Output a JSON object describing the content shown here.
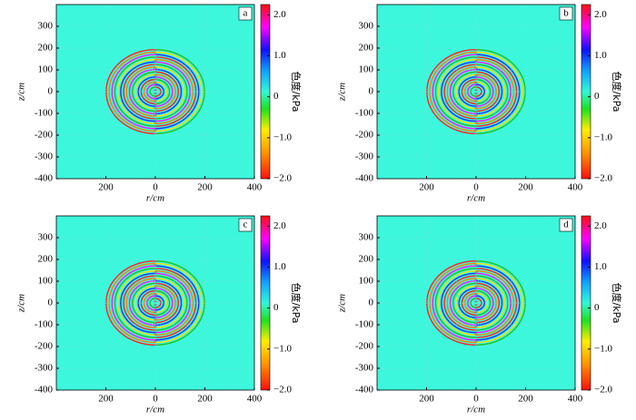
{
  "chart_data": [
    {
      "type": "heatmap",
      "panel_label": "a",
      "xlabel": "r/cm",
      "ylabel": "z/cm",
      "xlim": [
        -400,
        400
      ],
      "ylim": [
        -400,
        400
      ],
      "xticks": [
        {
          "value": -200,
          "label": "200"
        },
        0,
        200,
        400
      ],
      "yticks": [
        -400,
        -300,
        -200,
        -100,
        0,
        100,
        200,
        300
      ],
      "grid": true,
      "background": "#3cf7dc",
      "colorbar_label": "色度/kPa",
      "clim": [
        -2.0,
        2.25
      ],
      "cticks": [
        {
          "value": 2,
          "label": "2.0"
        },
        {
          "value": 1,
          "label": "1.0"
        },
        0,
        {
          "value": -1,
          "label": "−1.0"
        },
        {
          "value": -2,
          "label": "−2.0"
        }
      ]
    },
    {
      "type": "heatmap",
      "panel_label": "b",
      "xlabel": "r/cm",
      "ylabel": "z/cm",
      "xlim": [
        -400,
        400
      ],
      "ylim": [
        -400,
        400
      ],
      "xticks": [
        {
          "value": -200,
          "label": "200"
        },
        0,
        200,
        400
      ],
      "yticks": [
        -400,
        -300,
        -200,
        -100,
        0,
        100,
        200,
        300
      ],
      "grid": true,
      "background": "#3cf7dc",
      "colorbar_label": "色度/kPa",
      "clim": [
        -2.0,
        2.25
      ],
      "cticks": [
        {
          "value": 2,
          "label": "2.0"
        },
        {
          "value": 1,
          "label": "1.0"
        },
        0,
        {
          "value": -1,
          "label": "−1.0"
        },
        {
          "value": -2,
          "label": "−2.0"
        }
      ]
    },
    {
      "type": "heatmap",
      "panel_label": "c",
      "xlabel": "r/cm",
      "ylabel": "z/cm",
      "xlim": [
        -400,
        400
      ],
      "ylim": [
        -400,
        400
      ],
      "xticks": [
        {
          "value": -200,
          "label": "200"
        },
        0,
        200,
        400
      ],
      "yticks": [
        -400,
        -300,
        -200,
        -100,
        0,
        100,
        200,
        300
      ],
      "grid": true,
      "background": "#3cf7dc",
      "colorbar_label": "色度/kPa",
      "clim": [
        -2.0,
        2.25
      ],
      "cticks": [
        {
          "value": 2,
          "label": "2.0"
        },
        {
          "value": 1,
          "label": "1.0"
        },
        0,
        {
          "value": -1,
          "label": "−1.0"
        },
        {
          "value": -2,
          "label": "−2.0"
        }
      ]
    },
    {
      "type": "heatmap",
      "panel_label": "d",
      "xlabel": "r/cm",
      "ylabel": "z/cm",
      "xlim": [
        -400,
        400
      ],
      "ylim": [
        -400,
        400
      ],
      "xticks": [
        {
          "value": -200,
          "label": "200"
        },
        0,
        200,
        400
      ],
      "yticks": [
        -400,
        -300,
        -200,
        -100,
        0,
        100,
        200,
        300
      ],
      "grid": true,
      "background": "#3cf7dc",
      "colorbar_label": "色度/kPa",
      "clim": [
        -2.0,
        2.25
      ],
      "cticks": [
        {
          "value": 2,
          "label": "2.0"
        },
        {
          "value": 1,
          "label": "1.0"
        },
        0,
        {
          "value": -1,
          "label": "−1.0"
        },
        {
          "value": -2,
          "label": "−2.0"
        }
      ]
    }
  ]
}
